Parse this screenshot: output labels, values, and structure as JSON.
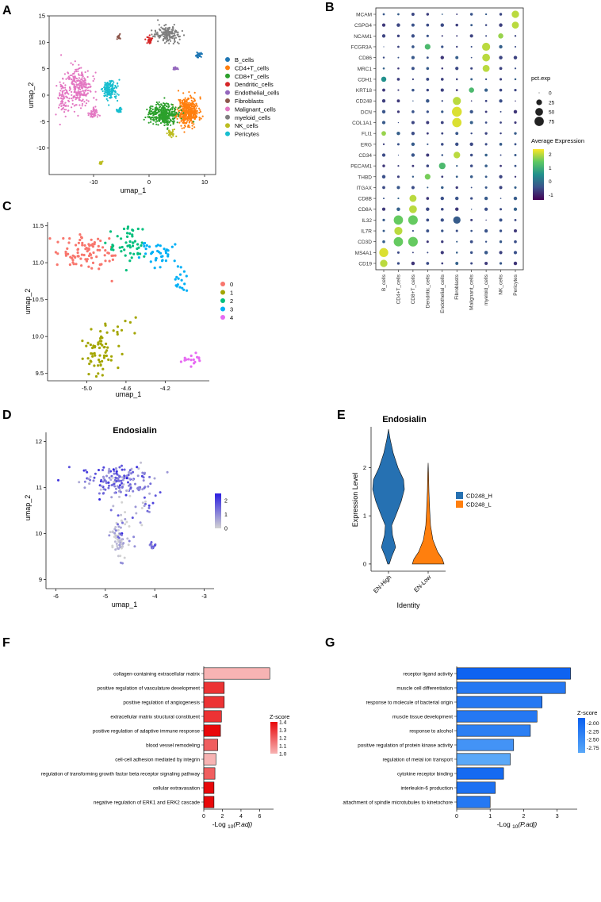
{
  "panel_labels": {
    "a": "A",
    "b": "B",
    "c": "C",
    "d": "D",
    "e": "E",
    "f": "F",
    "g": "G"
  },
  "chart_data": [
    {
      "panel": "A",
      "type": "scatter",
      "xlabel": "umap_1",
      "ylabel": "umap_2",
      "xlim": [
        -18,
        12
      ],
      "ylim": [
        -15,
        15
      ],
      "xticks": [
        -10,
        0,
        10
      ],
      "yticks": [
        -10,
        -5,
        0,
        5,
        10,
        15
      ],
      "legend": {
        "placement": "right",
        "entries": [
          "B_cells",
          "CD4+T_cells",
          "CD8+T_cells",
          "Dendritic_cells",
          "Endothelial_cells",
          "Fibroblasts",
          "Malignant_cells",
          "myeloid_cells",
          "NK_cells",
          "Pericytes"
        ]
      },
      "colors": {
        "B_cells": "#1f77b4",
        "CD4+T_cells": "#ff7f0e",
        "CD8+T_cells": "#2ca02c",
        "Dendritic_cells": "#d62728",
        "Endothelial_cells": "#9467bd",
        "Fibroblasts": "#8c564b",
        "Malignant_cells": "#e377c2",
        "myeloid_cells": "#7f7f7f",
        "NK_cells": "#bcbd22",
        "Pericytes": "#17becf"
      },
      "clusters": [
        {
          "name": "CD4+T_cells",
          "cx": 7,
          "cy": -3,
          "sx": 1.6,
          "sy": 2.2,
          "n": 420
        },
        {
          "name": "CD8+T_cells",
          "cx": 2.5,
          "cy": -3.5,
          "sx": 2.0,
          "sy": 1.6,
          "n": 380
        },
        {
          "name": "NK_cells",
          "cx": 4,
          "cy": -7.2,
          "sx": 0.5,
          "sy": 0.6,
          "n": 40
        },
        {
          "name": "myeloid_cells",
          "cx": 3.5,
          "cy": 11.5,
          "sx": 2.0,
          "sy": 1.2,
          "n": 180
        },
        {
          "name": "Dendritic_cells",
          "cx": 0,
          "cy": 10.5,
          "sx": 0.5,
          "sy": 0.5,
          "n": 40
        },
        {
          "name": "B_cells",
          "cx": 9,
          "cy": 7.5,
          "sx": 0.6,
          "sy": 0.4,
          "n": 40
        },
        {
          "name": "Endothelial_cells",
          "cx": 4.7,
          "cy": 5,
          "sx": 0.3,
          "sy": 0.3,
          "n": 20
        },
        {
          "name": "Fibroblasts",
          "cx": -5.5,
          "cy": 11,
          "sx": 0.3,
          "sy": 0.5,
          "n": 20
        },
        {
          "name": "Pericytes",
          "cx": -7,
          "cy": 1,
          "sx": 1.0,
          "sy": 1.5,
          "n": 140
        },
        {
          "name": "Pericytes",
          "cx": -5.5,
          "cy": -2.8,
          "sx": 0.4,
          "sy": 0.4,
          "n": 30
        },
        {
          "name": "Malignant_cells",
          "cx": -12.5,
          "cy": 1.5,
          "sx": 1.8,
          "sy": 3.0,
          "n": 260
        },
        {
          "name": "Malignant_cells",
          "cx": -15.5,
          "cy": -0.5,
          "sx": 0.8,
          "sy": 3.0,
          "n": 80
        },
        {
          "name": "Malignant_cells",
          "cx": -10,
          "cy": -3.5,
          "sx": 0.8,
          "sy": 0.8,
          "n": 40
        },
        {
          "name": "NK_cells",
          "cx": -8.7,
          "cy": -12.8,
          "sx": 0.3,
          "sy": 0.4,
          "n": 15
        }
      ]
    },
    {
      "panel": "B",
      "type": "dotplot",
      "genes": [
        "MCAM",
        "CSPG4",
        "NCAM1",
        "FCGR3A",
        "CD86",
        "MRC1",
        "CDH1",
        "KRT18",
        "CD248",
        "DCN",
        "COL1A1",
        "FLI1",
        "ERG",
        "CD34",
        "PECAM1",
        "THBD",
        "ITGAX",
        "CD8B",
        "CD8A",
        "IL32",
        "IL7R",
        "CD3D",
        "MS4A1",
        "CD19"
      ],
      "cell_types": [
        "B_cells",
        "CD4+T_cells",
        "CD8+T_cells",
        "Dendritic_cells",
        "Endothelial_cells",
        "Fibroblasts",
        "Malignant_cells",
        "myeloid_cells",
        "NK_cells",
        "Pericytes"
      ],
      "highlights": [
        {
          "gene": "MCAM",
          "type": "Pericytes",
          "pct": 45,
          "avg": 2.0
        },
        {
          "gene": "CSPG4",
          "type": "Pericytes",
          "pct": 40,
          "avg": 2.0
        },
        {
          "gene": "NCAM1",
          "type": "NK_cells",
          "pct": 20,
          "avg": 1.8
        },
        {
          "gene": "FCGR3A",
          "type": "myeloid_cells",
          "pct": 55,
          "avg": 2.0
        },
        {
          "gene": "CD86",
          "type": "myeloid_cells",
          "pct": 50,
          "avg": 2.0
        },
        {
          "gene": "MRC1",
          "type": "myeloid_cells",
          "pct": 40,
          "avg": 2.0
        },
        {
          "gene": "CD248",
          "type": "Fibroblasts",
          "pct": 55,
          "avg": 2.0
        },
        {
          "gene": "DCN",
          "type": "Fibroblasts",
          "pct": 85,
          "avg": 2.2
        },
        {
          "gene": "COL1A1",
          "type": "Fibroblasts",
          "pct": 75,
          "avg": 2.2
        },
        {
          "gene": "CD34",
          "type": "Fibroblasts",
          "pct": 35,
          "avg": 2.0
        },
        {
          "gene": "PECAM1",
          "type": "Endothelial_cells",
          "pct": 35,
          "avg": 1.2
        },
        {
          "gene": "THBD",
          "type": "Dendritic_cells",
          "pct": 25,
          "avg": 1.6
        },
        {
          "gene": "CD8B",
          "type": "CD8+T_cells",
          "pct": 40,
          "avg": 2.0
        },
        {
          "gene": "CD8A",
          "type": "CD8+T_cells",
          "pct": 50,
          "avg": 2.0
        },
        {
          "gene": "IL32",
          "type": "CD4+T_cells",
          "pct": 75,
          "avg": 1.5
        },
        {
          "gene": "IL32",
          "type": "CD8+T_cells",
          "pct": 80,
          "avg": 1.5
        },
        {
          "gene": "IL32",
          "type": "Fibroblasts",
          "pct": 45,
          "avg": -0.3
        },
        {
          "gene": "IL7R",
          "type": "CD4+T_cells",
          "pct": 55,
          "avg": 2.0
        },
        {
          "gene": "CD3D",
          "type": "CD4+T_cells",
          "pct": 75,
          "avg": 1.5
        },
        {
          "gene": "CD3D",
          "type": "CD8+T_cells",
          "pct": 80,
          "avg": 1.5
        },
        {
          "gene": "MS4A1",
          "type": "B_cells",
          "pct": 70,
          "avg": 2.2
        },
        {
          "gene": "CD19",
          "type": "B_cells",
          "pct": 45,
          "avg": 2.0
        },
        {
          "gene": "CDH1",
          "type": "B_cells",
          "pct": 20,
          "avg": 0.5
        },
        {
          "gene": "FLI1",
          "type": "B_cells",
          "pct": 15,
          "avg": 1.8
        },
        {
          "gene": "FCGR3A",
          "type": "Dendritic_cells",
          "pct": 25,
          "avg": 1.2
        },
        {
          "gene": "KRT18",
          "type": "Malignant_cells",
          "pct": 20,
          "avg": 1.2
        }
      ],
      "size_legend": {
        "title": "pct.exp",
        "values": [
          0,
          25,
          50,
          75
        ]
      },
      "color_legend": {
        "title": "Average Expression",
        "ticks": [
          2,
          1,
          0,
          -1
        ],
        "min": -1.4,
        "max": 2.4
      }
    },
    {
      "panel": "C",
      "type": "scatter",
      "xlabel": "umap_1",
      "ylabel": "umap_2",
      "xlim": [
        -5.4,
        -3.75
      ],
      "ylim": [
        9.4,
        11.55
      ],
      "xticks": [
        "-5.0",
        "-4.6",
        "-4.2"
      ],
      "xtick_values": [
        -5.0,
        -4.6,
        -4.2
      ],
      "yticks": [
        "9.5",
        "10.0",
        "10.5",
        "11.0",
        "11.5"
      ],
      "ytick_values": [
        9.5,
        10.0,
        10.5,
        11.0,
        11.5
      ],
      "legend": {
        "placement": "right",
        "entries": [
          "0",
          "1",
          "2",
          "3",
          "4"
        ]
      },
      "colors": [
        "#f8766d",
        "#a3a500",
        "#00bf7d",
        "#00b0f6",
        "#e76bf3"
      ],
      "clusters": [
        {
          "id": 0,
          "cx": -5.0,
          "cy": 11.12,
          "sx": 0.18,
          "sy": 0.12,
          "n": 100
        },
        {
          "id": 1,
          "cx": -4.88,
          "cy": 9.78,
          "sx": 0.08,
          "sy": 0.15,
          "n": 70
        },
        {
          "id": 2,
          "cx": -4.55,
          "cy": 11.25,
          "sx": 0.12,
          "sy": 0.14,
          "n": 50
        },
        {
          "id": 3,
          "cx": -4.25,
          "cy": 11.15,
          "sx": 0.1,
          "sy": 0.1,
          "n": 55
        },
        {
          "id": 4,
          "cx": -3.92,
          "cy": 9.68,
          "sx": 0.05,
          "sy": 0.03,
          "n": 16
        }
      ]
    },
    {
      "panel": "D",
      "type": "scatter",
      "title": "Endosialin",
      "xlabel": "umap_1",
      "ylabel": "umap_2",
      "xlim": [
        -6.2,
        -2.8
      ],
      "ylim": [
        8.8,
        12.2
      ],
      "xticks": [
        -6,
        -5,
        -4,
        -3
      ],
      "yticks": [
        9,
        10,
        11,
        12
      ],
      "colorbar": {
        "ticks": [
          2,
          1,
          0
        ],
        "min": 0,
        "max": 2.5,
        "low": "#d3d3d3",
        "high": "#2b1ee0"
      }
    },
    {
      "panel": "E",
      "type": "violin",
      "title": "Endosialin",
      "xlabel": "Identity",
      "ylabel": "Expression Level",
      "categories": [
        "EN-High",
        "EN-Low"
      ],
      "ylim": [
        -0.15,
        2.85
      ],
      "yticks": [
        0,
        1,
        2
      ],
      "legend": {
        "placement": "right",
        "entries": [
          "CD248_H",
          "CD248_L"
        ]
      },
      "colors": [
        "#2671b2",
        "#ff7f0e"
      ]
    },
    {
      "panel": "F",
      "type": "bar",
      "orientation": "horizontal",
      "categories": [
        "collagen-containing extracellular matrix",
        "positive regulation of vasculature development",
        "positive regulation of angiogenesis",
        "extracellular matrix structural constituent",
        "positive regulation of adaptive immune response",
        "blood vessel remodeling",
        "cell-cell adhesion mediated by integrin",
        "regulation of transforming growth factor beta receptor signaling pathway",
        "cellular extravasation",
        "negative regulation of ERK1 and ERK2 cascade"
      ],
      "values": [
        7.1,
        2.2,
        2.2,
        1.9,
        1.8,
        1.5,
        1.3,
        1.2,
        1.1,
        1.1
      ],
      "zscores": [
        1.0,
        1.3,
        1.3,
        1.3,
        1.4,
        1.2,
        1.0,
        1.2,
        1.4,
        1.4
      ],
      "xlim": [
        0,
        7.5
      ],
      "xticks": [
        0,
        2,
        4,
        6
      ],
      "xlabel_main": "-Log ",
      "xlabel_sub": "10",
      "xlabel_tail": "(P.adj)",
      "legend": {
        "title": "Z-score",
        "labels": [
          "1.4",
          "1.3",
          "1.2",
          "1.1",
          "1.0"
        ],
        "min": 1.0,
        "max": 1.4,
        "low_color": "#f7b3b3",
        "high_color": "#e8080a"
      }
    },
    {
      "panel": "G",
      "type": "bar",
      "orientation": "horizontal",
      "categories": [
        "receptor ligand activity",
        "muscle cell differentiation",
        "response to molecule of bacterial origin",
        "muscle tissue development",
        "response to alcohol",
        "positive regulation of protein kinase activity",
        "regulation of metal ion transport",
        "cytokine receptor binding",
        "interleukin-6 production",
        "attachment of spindle microtubules to kinetochore"
      ],
      "values": [
        3.4,
        3.25,
        2.55,
        2.4,
        2.2,
        1.7,
        1.6,
        1.4,
        1.15,
        1.0
      ],
      "zscores": [
        -1.9,
        -2.2,
        -2.2,
        -2.2,
        -2.3,
        -2.6,
        -2.9,
        -2.0,
        -2.1,
        -2.2
      ],
      "xlim": [
        0,
        3.6
      ],
      "xticks": [
        0,
        1,
        2,
        3
      ],
      "xlabel_main": "-Log ",
      "xlabel_sub": "10",
      "xlabel_tail": "(P.adj)",
      "legend": {
        "title": "Z-score",
        "labels": [
          "-2.00",
          "-2.25",
          "-2.50",
          "-2.75"
        ],
        "min": -2.9,
        "max": -1.85,
        "low_color": "#5aa8f8",
        "high_color": "#0a60f0"
      }
    }
  ]
}
